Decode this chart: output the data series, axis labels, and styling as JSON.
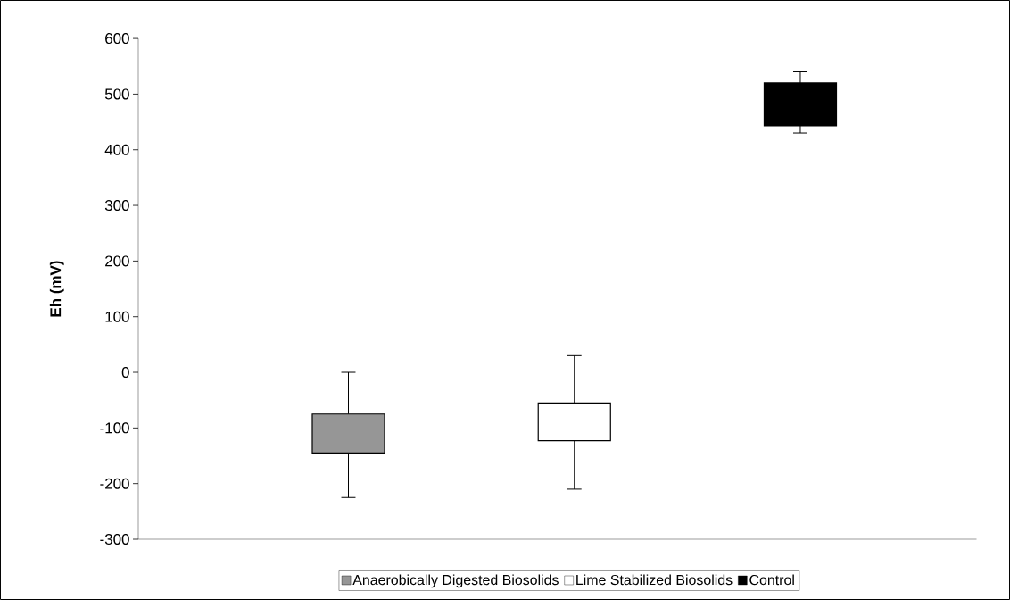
{
  "chart_data": {
    "type": "bar",
    "ylabel": "Eh (mV)",
    "categories": [
      null,
      null,
      null
    ],
    "ylim": [
      -300,
      600
    ],
    "yticks": [
      -300,
      -200,
      -100,
      0,
      100,
      200,
      300,
      400,
      500,
      600
    ],
    "legend": "bottom",
    "series": [
      {
        "name": "Anaerobically Digested Biosolids",
        "color": "#969696",
        "values": [
          70,
          null,
          null
        ],
        "base": [
          -145,
          null,
          null
        ],
        "errors": [
          [
            -225,
            0
          ],
          null,
          null
        ]
      },
      {
        "name": "Lime Stabilized Biosolids",
        "color": "#ffffff",
        "values": [
          null,
          68,
          null
        ],
        "base": [
          null,
          -123,
          null
        ],
        "errors": [
          null,
          [
            -210,
            30
          ],
          null
        ]
      },
      {
        "name": "Control",
        "color": "#000000",
        "values": [
          null,
          null,
          77
        ],
        "base": [
          null,
          null,
          443
        ],
        "errors": [
          null,
          null,
          [
            430,
            540
          ]
        ]
      }
    ]
  }
}
